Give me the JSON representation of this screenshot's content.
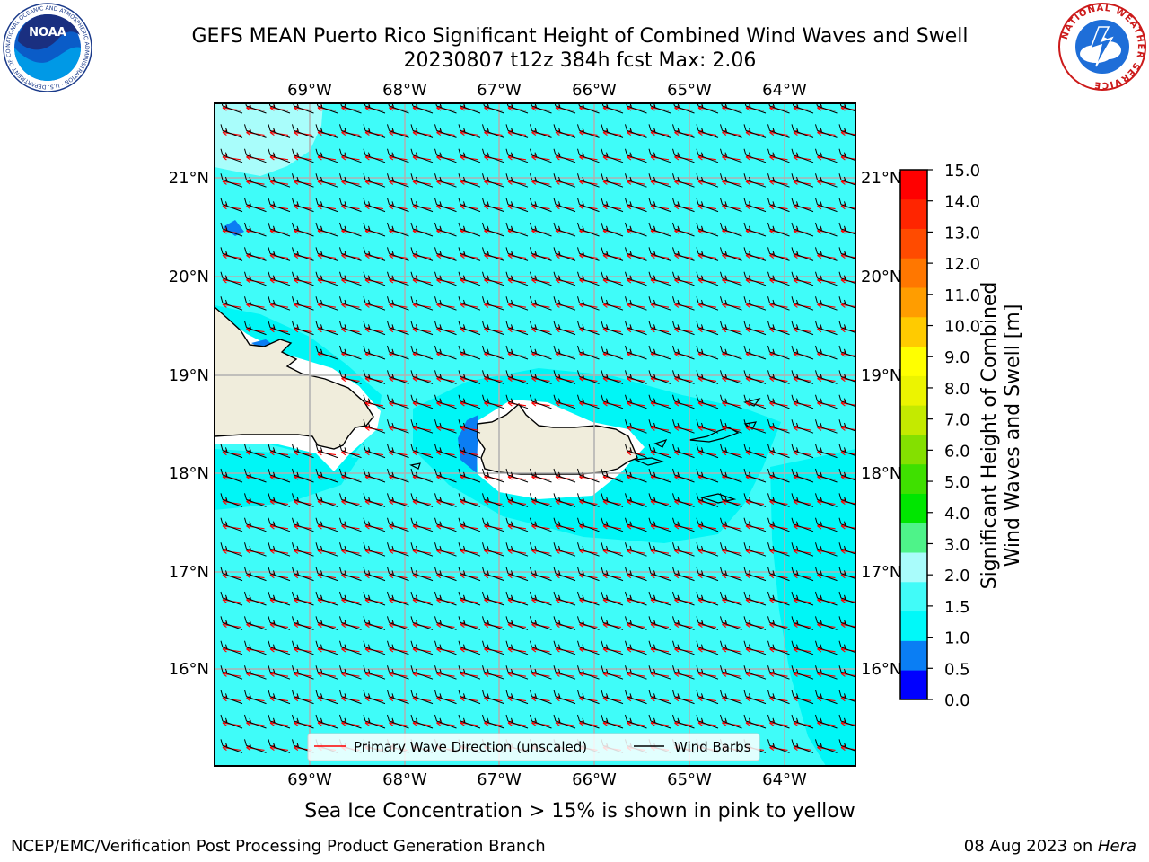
{
  "title": {
    "line1": "GEFS MEAN Puerto Rico Significant Height of Combined Wind Waves and Swell",
    "line2": "20230807 t12z 384h fcst   Max: 2.06"
  },
  "map": {
    "lon_labels": [
      "69°W",
      "68°W",
      "67°W",
      "66°W",
      "65°W",
      "64°W"
    ],
    "lat_labels": [
      "21°N",
      "20°N",
      "19°N",
      "18°N",
      "17°N",
      "16°N"
    ],
    "legend": {
      "wave_direction": "Primary Wave Direction (unscaled)",
      "wind_barbs": "Wind Barbs"
    },
    "colors": {
      "ocean_main": "#3ffcf9",
      "ocean_low": "#00f6f6",
      "ocean_high": "#a9fdfb",
      "shallow_blue": "#0b7df3",
      "land": "#f0eddc",
      "wave_arrow": "#ff0000",
      "barb": "#000000"
    }
  },
  "colorbar": {
    "title_line1": "Significant Height of Combined",
    "title_line2": "Wind Waves and Swell [m]",
    "ticks": [
      "0.0",
      "0.5",
      "1.0",
      "1.5",
      "2.0",
      "3.0",
      "4.0",
      "5.0",
      "6.0",
      "7.0",
      "8.0",
      "9.0",
      "10.0",
      "11.0",
      "12.0",
      "13.0",
      "14.0",
      "15.0"
    ],
    "colors": [
      "#0000ff",
      "#0a7ef4",
      "#00f9f9",
      "#41fbf8",
      "#a9fcfb",
      "#4ef389",
      "#00e600",
      "#3fe000",
      "#84e000",
      "#c4ea00",
      "#ecf400",
      "#ffff00",
      "#ffcb00",
      "#ff9d00",
      "#ff7700",
      "#ff4b00",
      "#ff2500",
      "#ff0000"
    ]
  },
  "subtitle": "Sea Ice Concentration > 15% is shown in pink to yellow",
  "footer": {
    "left": "NCEP/EMC/Verification Post Processing Product Generation Branch",
    "right_prefix": "08 Aug 2023 on ",
    "right_host": "Hera"
  },
  "logos": {
    "noaa_text": "NOAA",
    "noaa_ring": "NATIONAL OCEANIC AND ATMOSPHERIC ADMINISTRATION · U.S. DEPARTMENT OF COMMERCE",
    "nws_ring": "NATIONAL WEATHER SERVICE"
  }
}
